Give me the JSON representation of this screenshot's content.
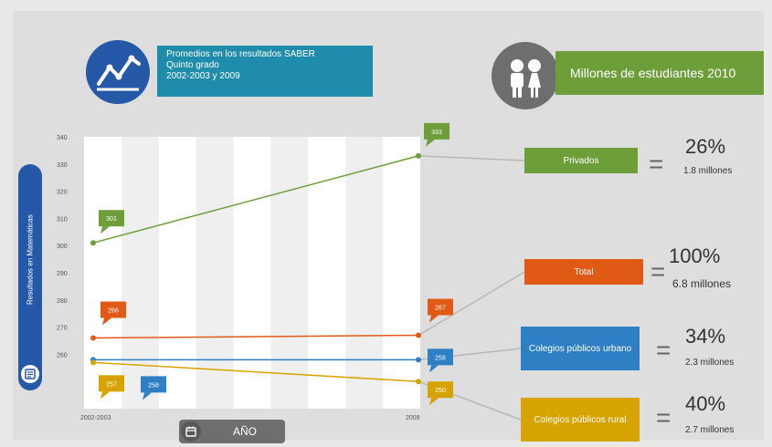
{
  "header": {
    "title_lines": [
      "Promedios en los resultados SABER",
      "Quinto grado",
      "2002-2003 y 2009"
    ],
    "students_title": "Millones de estudiantes 2010"
  },
  "icons": {
    "trend": "line-chart-icon",
    "students": "students-icon",
    "y_axis": "score-icon",
    "x_axis": "calendar-icon"
  },
  "colors": {
    "background": "#dedede",
    "title_blue": "#2559a8",
    "title_teal": "#1f8cab",
    "privados": "#6d9e3a",
    "total": "#e05a16",
    "urbano": "#2e7fc4",
    "rural": "#d6a300",
    "grey": "#6e6e6e"
  },
  "axes": {
    "y_title": "Resultados en Matemáticas",
    "x_title": "AÑO"
  },
  "chart_data": {
    "type": "line",
    "x": [
      "2002-2003",
      "2009"
    ],
    "yticks": [
      260,
      270,
      280,
      290,
      300,
      310,
      320,
      330,
      340
    ],
    "ylim": [
      240,
      340
    ],
    "series": [
      {
        "name": "Privados",
        "values": [
          301,
          333
        ],
        "labels": [
          "301",
          "333"
        ],
        "color": "#6d9e3a"
      },
      {
        "name": "Total",
        "values": [
          266,
          267
        ],
        "labels": [
          "266",
          "267"
        ],
        "color": "#e05a16"
      },
      {
        "name": "Colegios públicos urbano",
        "values": [
          258,
          258
        ],
        "labels": [
          "258",
          "258"
        ],
        "color": "#2e7fc4"
      },
      {
        "name": "Colegios públicos rural",
        "values": [
          257,
          250
        ],
        "labels": [
          "257",
          "250"
        ],
        "color": "#d6a300"
      }
    ],
    "grid": true
  },
  "groups": [
    {
      "label": "Privados",
      "percent": "26%",
      "amount": "1.8 millones",
      "color": "#6d9e3a"
    },
    {
      "label": "Total",
      "percent": "100%",
      "amount": "6.8 millones",
      "color": "#e05a16"
    },
    {
      "label": "Colegios públicos urbano",
      "percent": "34%",
      "amount": "2.3 millones",
      "color": "#2e7fc4"
    },
    {
      "label": "Colegios públicos rural",
      "percent": "40%",
      "amount": "2.7 millones",
      "color": "#d6a300"
    }
  ],
  "equals_sign": "="
}
